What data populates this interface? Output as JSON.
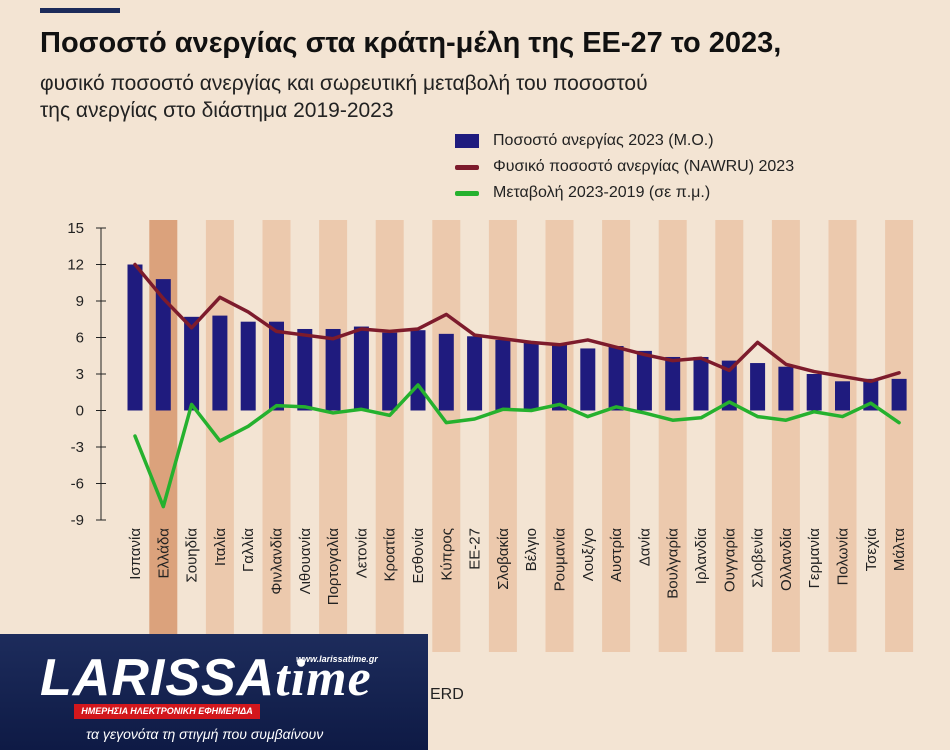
{
  "header": {
    "title": "Ποσοστό ανεργίας στα κράτη-μέλη της ΕΕ-27 το 2023,",
    "subtitle_line1": "φυσικό ποσοστό ανεργίας και σωρευτική μεταβολή του ποσοστού",
    "subtitle_line2": "της ανεργίας στο διάστημα 2019-2023"
  },
  "legend": {
    "bar_label": "Ποσοστό ανεργίας 2023 (Μ.Ο.)",
    "nawru_label": "Φυσικό ποσοστό ανεργίας (NAWRU) 2023",
    "change_label": "Μεταβολή 2023-2019 (σε π.μ.)"
  },
  "colors": {
    "background": "#f3e4d3",
    "bar": "#1f1b7e",
    "nawru_line": "#7d1b2c",
    "change_line": "#25b12e",
    "band_light": "#ecc9ad",
    "band_highlight": "#dba27c"
  },
  "chart_data": {
    "type": "bar",
    "ylim": [
      -9,
      15
    ],
    "yticks": [
      15,
      12,
      9,
      6,
      3,
      0,
      -3,
      -6,
      -9
    ],
    "grid": false,
    "legend_position": "top-right",
    "highlighted_category": "Ελλάδα",
    "categories": [
      "Ισπανία",
      "Ελλάδα",
      "Σουηδία",
      "Ιταλία",
      "Γαλλία",
      "Φινλανδία",
      "Λιθουανία",
      "Πορτογαλία",
      "Λετονία",
      "Κροατία",
      "Εσθονία",
      "Κύπρος",
      "ΕΕ-27",
      "Σλοβακία",
      "Βέλγιο",
      "Ρουμανία",
      "Λουξ/γο",
      "Αυστρία",
      "Δανία",
      "Βουλγαρία",
      "Ιρλανδία",
      "Ουγγαρία",
      "Σλοβενία",
      "Ολλανδία",
      "Γερμανία",
      "Πολωνία",
      "Τσεχία",
      "Μάλτα"
    ],
    "series": [
      {
        "name": "Ποσοστό ανεργίας 2023 (Μ.Ο.)",
        "type": "bar",
        "values": [
          12.0,
          10.8,
          7.7,
          7.8,
          7.3,
          7.3,
          6.7,
          6.7,
          6.9,
          6.4,
          6.6,
          6.3,
          6.1,
          5.8,
          5.6,
          5.5,
          5.1,
          5.3,
          4.9,
          4.4,
          4.4,
          4.1,
          3.9,
          3.6,
          3.0,
          2.4,
          2.6,
          2.6
        ]
      },
      {
        "name": "Φυσικό ποσοστό ανεργίας (NAWRU) 2023",
        "type": "line",
        "values": [
          12.0,
          9.2,
          6.8,
          9.3,
          8.1,
          6.5,
          6.2,
          5.9,
          6.7,
          6.5,
          6.7,
          7.9,
          6.2,
          5.9,
          5.6,
          5.4,
          5.8,
          5.2,
          4.6,
          4.1,
          4.3,
          3.3,
          5.6,
          3.8,
          3.2,
          2.8,
          2.4,
          3.1
        ]
      },
      {
        "name": "Μεταβολή 2023-2019 (σε π.μ.)",
        "type": "line",
        "values": [
          -2.1,
          -7.9,
          0.5,
          -2.5,
          -1.3,
          0.4,
          0.3,
          -0.2,
          0.1,
          -0.4,
          2.1,
          -1.0,
          -0.7,
          0.1,
          0.0,
          0.5,
          -0.5,
          0.3,
          -0.2,
          -0.8,
          -0.6,
          0.7,
          -0.5,
          -0.8,
          -0.1,
          -0.5,
          0.6,
          -1.0
        ]
      }
    ]
  },
  "branding": {
    "logo_main": "LARISSA",
    "logo_time": "time",
    "logo_url": "www.larissatime.gr",
    "logo_strip": "ΗΜΕΡΗΣΙΑ ΗΛΕΚΤΡΟΝΙΚΗ ΕΦΗΜΕΡΙΔΑ",
    "logo_tagline": "τα γεγονότα τη στιγμή που συμβαίνουν"
  },
  "source_fragment": "ERD"
}
